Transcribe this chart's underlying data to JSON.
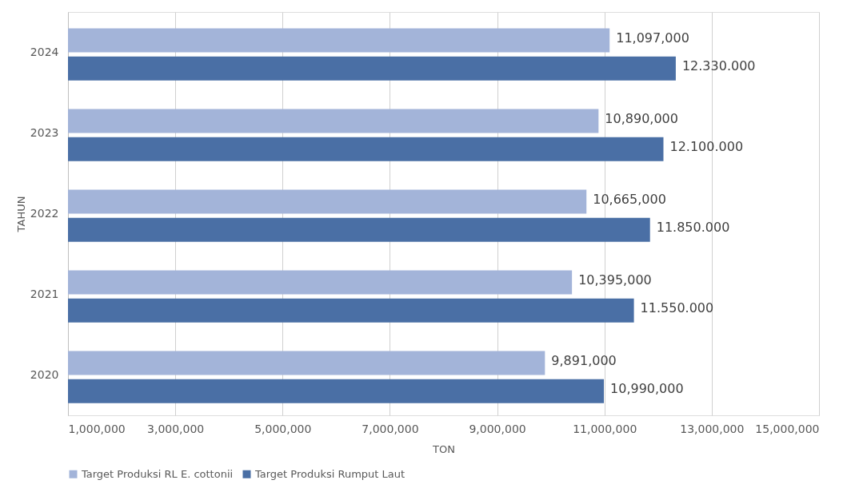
{
  "chart_data": {
    "type": "bar",
    "orientation": "horizontal",
    "xlabel": "TON",
    "ylabel": "TAHUN",
    "categories": [
      "2024",
      "2023",
      "2022",
      "2021",
      "2020"
    ],
    "series": [
      {
        "name": "Target Produksi RL E. cottonii",
        "color": "#a3b4d9",
        "values": [
          11097000,
          10890000,
          10665000,
          10395000,
          9891000
        ],
        "value_labels": [
          "11,097,000",
          "10,890,000",
          "10,665,000",
          "10,395,000",
          "9,891,000"
        ]
      },
      {
        "name": "Target Produksi Rumput Laut",
        "color": "#4a6fa5",
        "values": [
          12330000,
          12100000,
          11850000,
          11550000,
          10990000
        ],
        "value_labels": [
          "12.330.000",
          "12.100.000",
          "11.850.000",
          "11.550.000",
          "10,990,000"
        ]
      }
    ],
    "xlim": [
      1000000,
      15000000
    ],
    "xticks": [
      {
        "value": 1000000,
        "label": "1,000,000"
      },
      {
        "value": 3000000,
        "label": "3,000,000"
      },
      {
        "value": 5000000,
        "label": "5,000,000"
      },
      {
        "value": 7000000,
        "label": "7,000,000"
      },
      {
        "value": 9000000,
        "label": "9,000,000"
      },
      {
        "value": 11000000,
        "label": "11,000,000"
      },
      {
        "value": 13000000,
        "label": "13,000,000"
      },
      {
        "value": 15000000,
        "label": "15,000,000"
      }
    ],
    "grid": "x",
    "legend": "bottom"
  }
}
